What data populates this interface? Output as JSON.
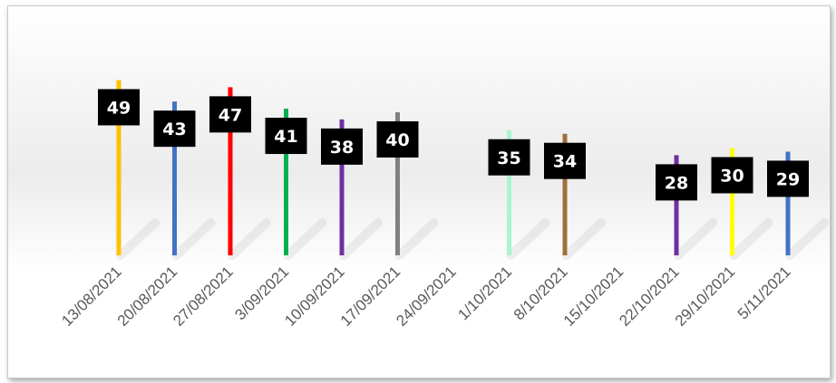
{
  "chart_data": {
    "type": "bar",
    "style": "lollipop stems with black data-label boxes",
    "categories": [
      "13/08/2021",
      "20/08/2021",
      "27/08/2021",
      "3/09/2021",
      "10/09/2021",
      "17/09/2021",
      "24/09/2021",
      "1/10/2021",
      "8/10/2021",
      "15/10/2021",
      "22/10/2021",
      "29/10/2021",
      "5/11/2021"
    ],
    "values": [
      49,
      43,
      47,
      41,
      38,
      40,
      null,
      35,
      34,
      null,
      28,
      30,
      29
    ],
    "labels": [
      "49",
      "43",
      "47",
      "41",
      "38",
      "40",
      "",
      "35",
      "34",
      "",
      "28",
      "30",
      "29"
    ],
    "colors": [
      "#FFC000",
      "#4472C4",
      "#FF0000",
      "#00B050",
      "#7030A0",
      "#808080",
      "#FFFFFF",
      "#A9F5D0",
      "#A0703A",
      "#FFFFFF",
      "#7030A0",
      "#FFFF00",
      "#4472C4"
    ],
    "title": "",
    "xlabel": "",
    "ylabel": "",
    "ylim": [
      0,
      55
    ],
    "grid": false,
    "legend": "none"
  }
}
